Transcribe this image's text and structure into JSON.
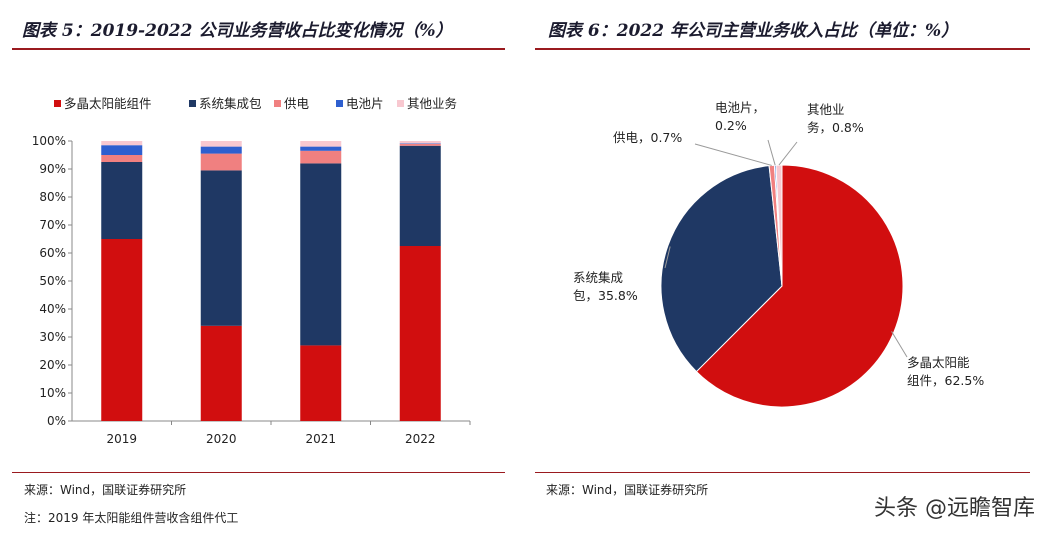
{
  "left_panel": {
    "title": "图表 5：2019-2022 公司业务营收占比变化情况（%）",
    "source": "来源：Wind，国联证券研究所",
    "note": "注：2019 年太阳能组件营收含组件代工"
  },
  "right_panel": {
    "title": "图表 6：2022 年公司主营业务收入占比（单位：%）",
    "source": "来源：Wind，国联证券研究所"
  },
  "watermark": "头条 @远瞻智库",
  "colors": {
    "solar": "#d10e0f",
    "system": "#1f3864",
    "power": "#f08080",
    "cell": "#2e5fcf",
    "other": "#f8c8d0",
    "rule": "#9a1a1f"
  },
  "chart_data": [
    {
      "type": "bar",
      "stacked": true,
      "categories": [
        "2019",
        "2020",
        "2021",
        "2022"
      ],
      "series": [
        {
          "name": "多晶太阳能组件",
          "values": [
            65,
            34,
            27,
            62.5
          ]
        },
        {
          "name": "系统集成包",
          "values": [
            27.5,
            55.5,
            65,
            35.8
          ]
        },
        {
          "name": "供电",
          "values": [
            2.5,
            6,
            4.5,
            0.7
          ]
        },
        {
          "name": "电池片",
          "values": [
            3.5,
            2.5,
            1.5,
            0.2
          ]
        },
        {
          "name": "其他业务",
          "values": [
            1.5,
            2,
            2,
            0.8
          ]
        }
      ],
      "ylim": [
        0,
        100
      ],
      "yticks": [
        "0%",
        "10%",
        "20%",
        "30%",
        "40%",
        "50%",
        "60%",
        "70%",
        "80%",
        "90%",
        "100%"
      ],
      "legend": "top",
      "grid": false
    },
    {
      "type": "pie",
      "slices": [
        {
          "name": "多晶太阳能组件",
          "value": 62.5,
          "label": [
            "多晶太阳能",
            "组件，62.5%"
          ]
        },
        {
          "name": "系统集成包",
          "value": 35.8,
          "label": [
            "系统集成",
            "包，35.8%"
          ]
        },
        {
          "name": "供电",
          "value": 0.7,
          "label": [
            "供电，0.7%"
          ]
        },
        {
          "name": "电池片",
          "value": 0.2,
          "label": [
            "电池片，",
            "0.2%"
          ]
        },
        {
          "name": "其他业务",
          "value": 0.8,
          "label": [
            "其他业",
            "务，0.8%"
          ]
        }
      ]
    }
  ]
}
